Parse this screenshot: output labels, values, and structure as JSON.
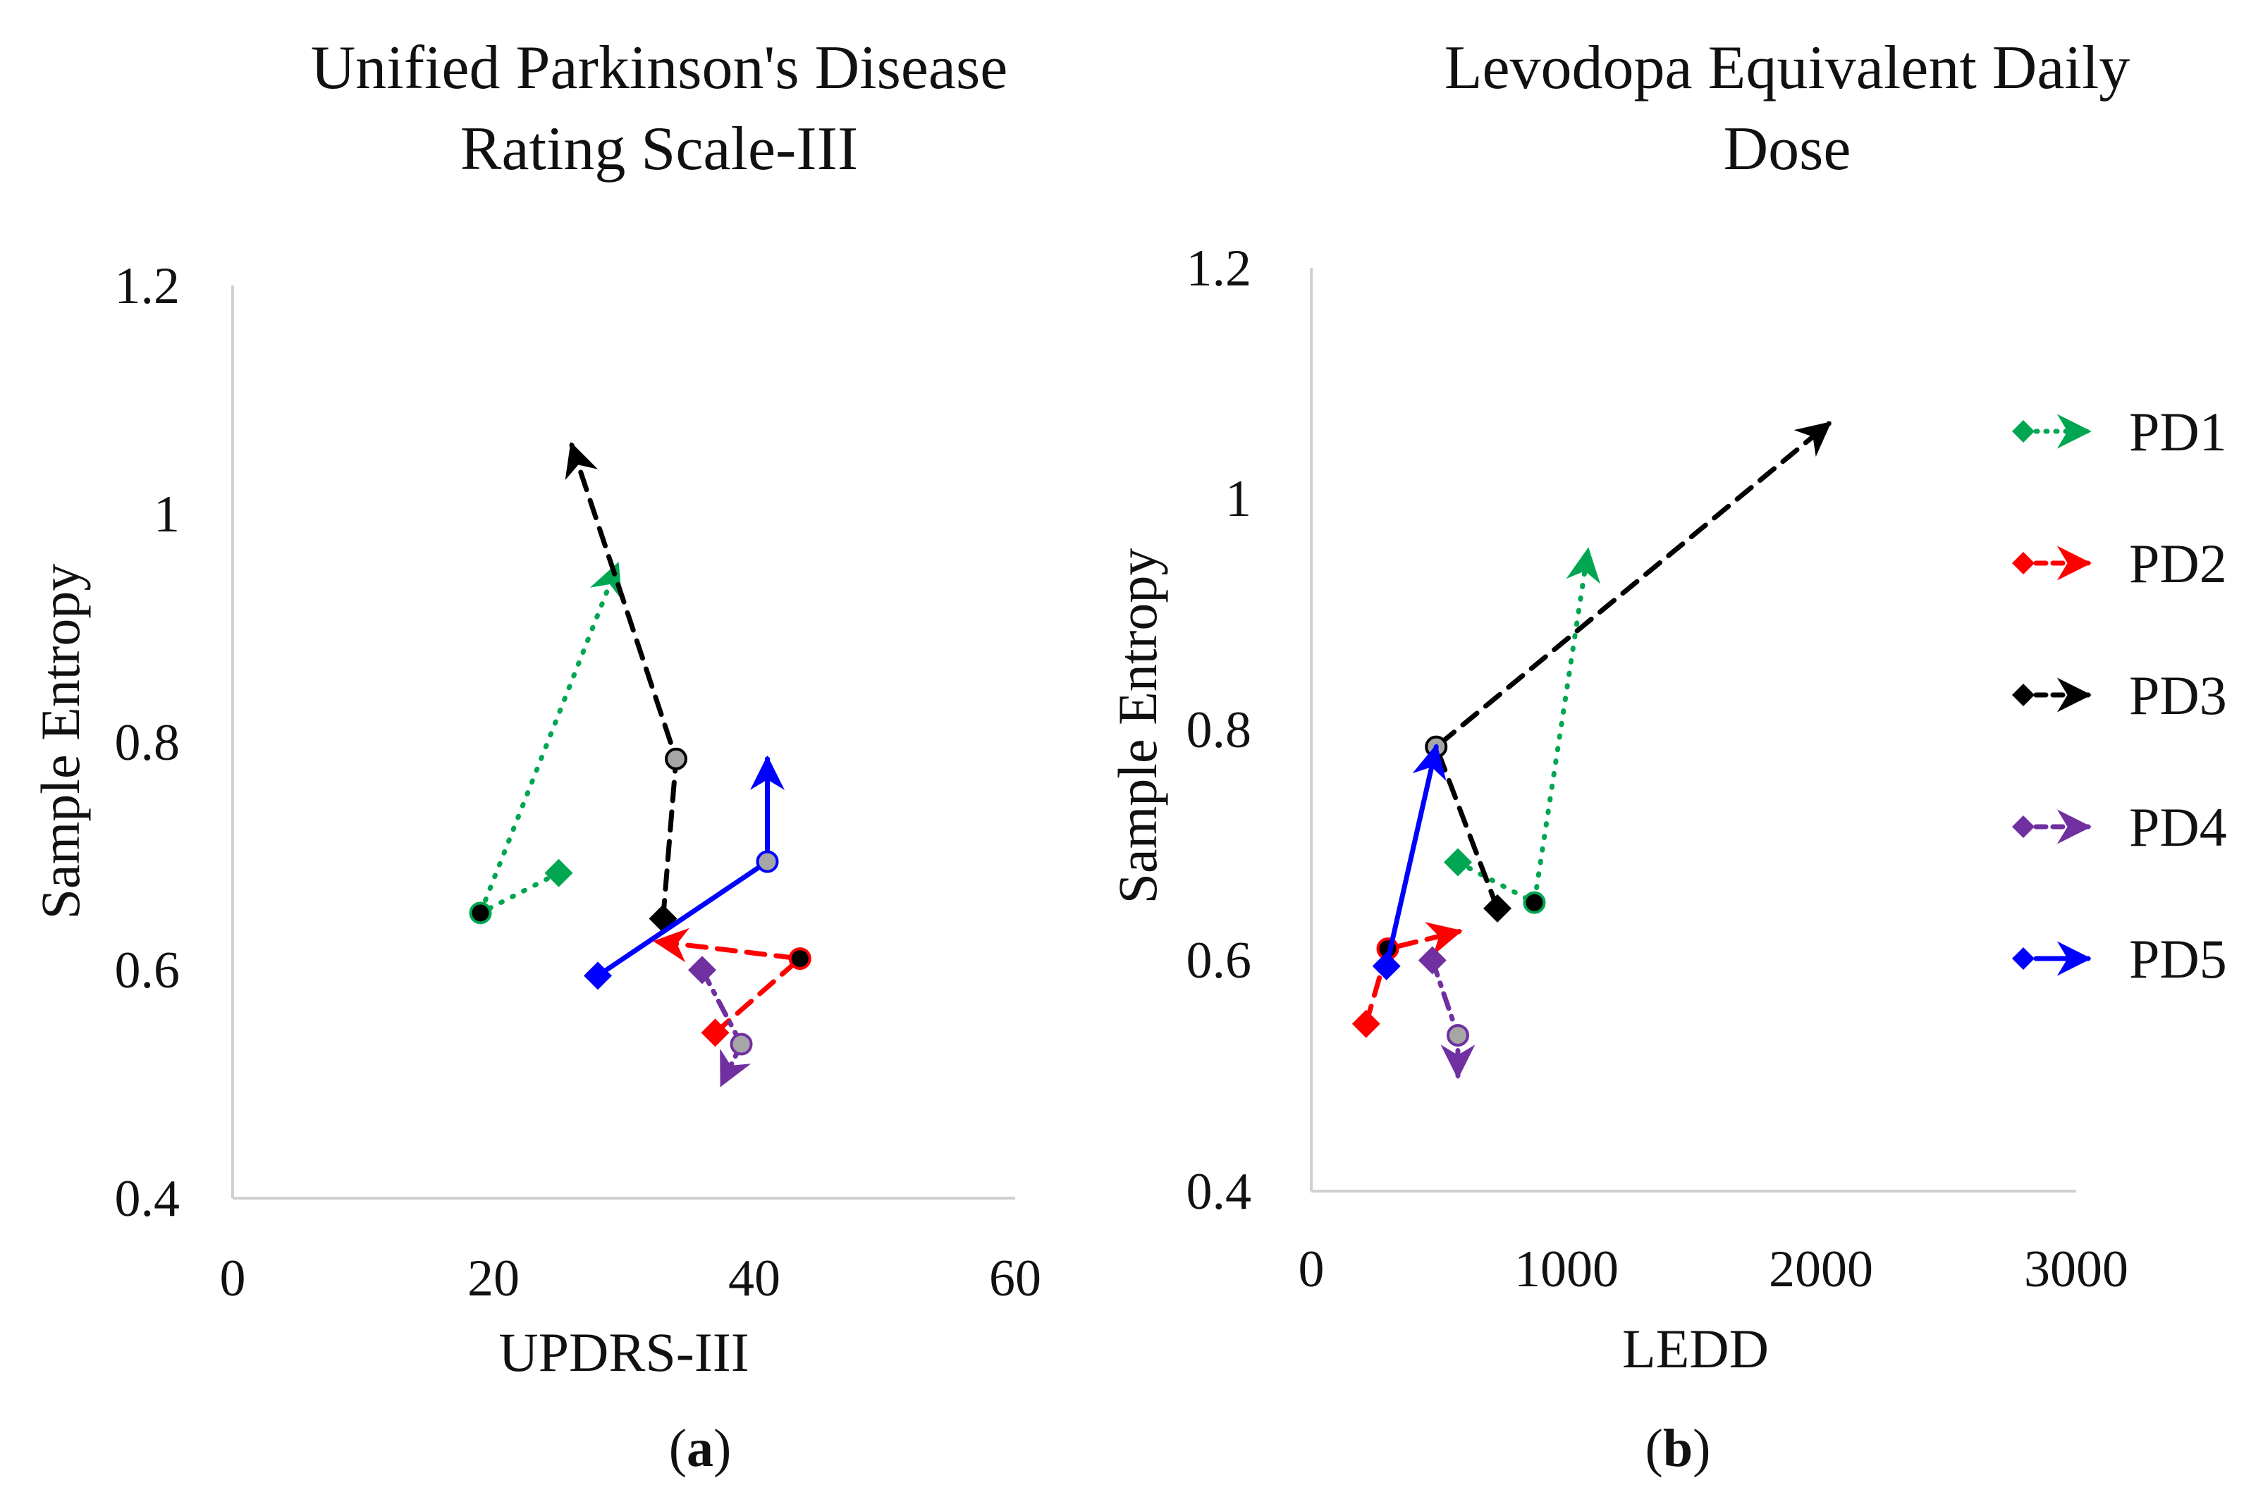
{
  "chart_data": [
    {
      "id": "a",
      "type": "scatter",
      "title_lines": [
        "Unified Parkinson's Disease",
        "Rating Scale-III"
      ],
      "xlabel": "UPDRS-III",
      "ylabel": "Sample Entropy",
      "xlim": [
        0,
        60
      ],
      "ylim": [
        0.4,
        1.2
      ],
      "xticks": [
        0,
        20,
        40,
        60
      ],
      "yticks": [
        0.4,
        0.6,
        0.8,
        1,
        1.2
      ],
      "xtick_labels": [
        "0",
        "20",
        "40",
        "60"
      ],
      "ytick_labels": [
        "0.4",
        "0.6",
        "0.8",
        "1",
        "1.2"
      ],
      "panel_label": "a",
      "series": [
        {
          "name": "PD1",
          "points": [
            {
              "x": 25,
              "y": 0.685
            },
            {
              "x": 19,
              "y": 0.65
            },
            {
              "x": 29.5,
              "y": 0.955
            }
          ]
        },
        {
          "name": "PD2",
          "points": [
            {
              "x": 37,
              "y": 0.545
            },
            {
              "x": 43.5,
              "y": 0.61
            },
            {
              "x": 32.5,
              "y": 0.625
            }
          ]
        },
        {
          "name": "PD3",
          "points": [
            {
              "x": 33,
              "y": 0.645
            },
            {
              "x": 34,
              "y": 0.785
            },
            {
              "x": 26,
              "y": 1.06
            }
          ]
        },
        {
          "name": "PD4",
          "points": [
            {
              "x": 36,
              "y": 0.6
            },
            {
              "x": 39,
              "y": 0.535
            },
            {
              "x": 37.5,
              "y": 0.5
            }
          ]
        },
        {
          "name": "PD5",
          "points": [
            {
              "x": 28,
              "y": 0.595
            },
            {
              "x": 41,
              "y": 0.695
            },
            {
              "x": 41,
              "y": 0.785
            }
          ]
        }
      ]
    },
    {
      "id": "b",
      "type": "scatter",
      "title_lines": [
        "Levodopa Equivalent Daily",
        "Dose"
      ],
      "xlabel": "LEDD",
      "ylabel": "Sample Entropy",
      "xlim": [
        0,
        3000
      ],
      "ylim": [
        0.4,
        1.2
      ],
      "xticks": [
        0,
        1000,
        2000,
        3000
      ],
      "yticks": [
        0.4,
        0.6,
        0.8,
        1,
        1.2
      ],
      "xtick_labels": [
        "0",
        "1000",
        "2000",
        "3000"
      ],
      "ytick_labels": [
        "0.4",
        "0.6",
        "0.8",
        "1",
        "1.2"
      ],
      "panel_label": "b",
      "series": [
        {
          "name": "PD1",
          "points": [
            {
              "x": 575,
              "y": 0.685
            },
            {
              "x": 875,
              "y": 0.65
            },
            {
              "x": 1085,
              "y": 0.955
            }
          ]
        },
        {
          "name": "PD2",
          "points": [
            {
              "x": 215,
              "y": 0.545
            },
            {
              "x": 300,
              "y": 0.61
            },
            {
              "x": 580,
              "y": 0.625
            }
          ]
        },
        {
          "name": "PD3",
          "points": [
            {
              "x": 730,
              "y": 0.645
            },
            {
              "x": 490,
              "y": 0.785
            },
            {
              "x": 2030,
              "y": 1.065
            }
          ]
        },
        {
          "name": "PD4",
          "points": [
            {
              "x": 475,
              "y": 0.6
            },
            {
              "x": 575,
              "y": 0.535
            },
            {
              "x": 575,
              "y": 0.5
            }
          ]
        },
        {
          "name": "PD5",
          "points": [
            {
              "x": 295,
              "y": 0.595
            },
            {
              "x": 490,
              "y": 0.785
            }
          ]
        }
      ]
    }
  ],
  "legend": [
    {
      "name": "PD1",
      "color": "#00a651",
      "dash": "dotted",
      "end_marker": "circle-black"
    },
    {
      "name": "PD2",
      "color": "#ff0000",
      "dash": "dashed",
      "end_marker": "circle-black"
    },
    {
      "name": "PD3",
      "color": "#000000",
      "dash": "dashed",
      "end_marker": "circle-gray"
    },
    {
      "name": "PD4",
      "color": "#7030a0",
      "dash": "dash-dot",
      "end_marker": "circle-gray"
    },
    {
      "name": "PD5",
      "color": "#0000ff",
      "dash": "solid",
      "end_marker": "circle-gray"
    }
  ],
  "colors": {
    "axis": "#d0d0d0",
    "text": "#111111",
    "gray_marker": "#a6a6a6"
  }
}
